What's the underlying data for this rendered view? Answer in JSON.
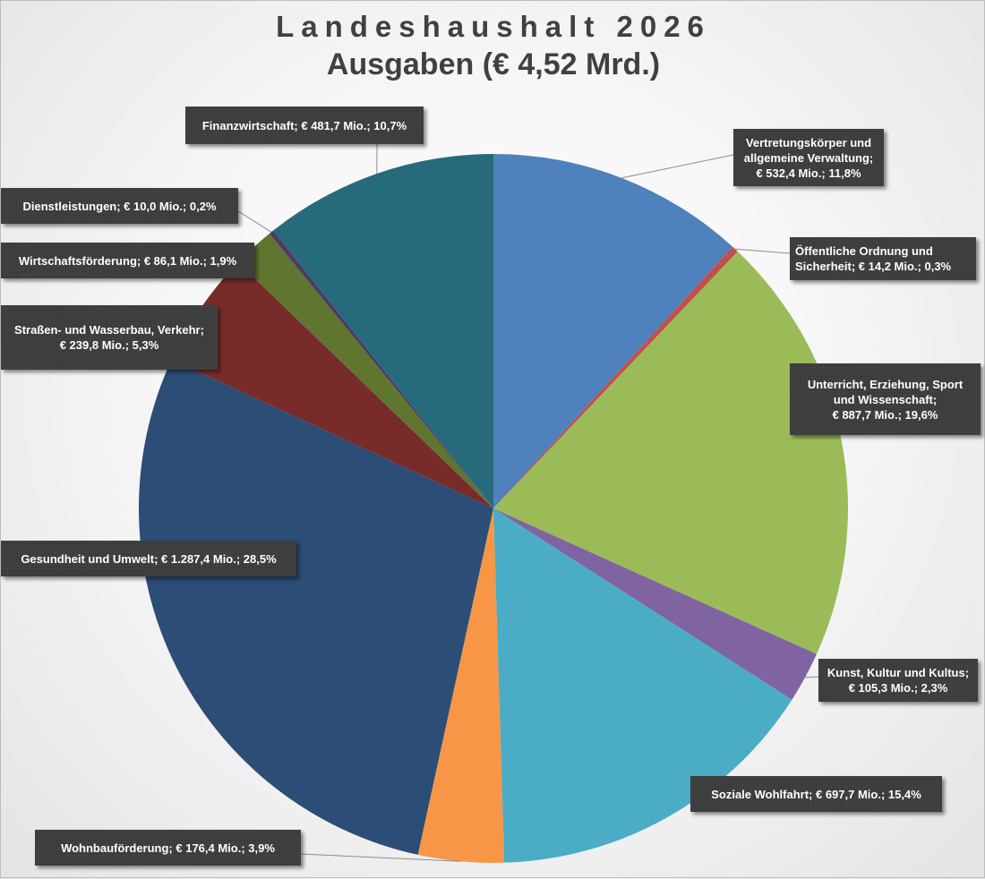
{
  "title_line1": "Landeshaushalt 2026",
  "title_line2": "Ausgaben (€ 4,52 Mrd.)",
  "chart_data": {
    "type": "pie",
    "title": "Landeshaushalt 2026 Ausgaben (€ 4,52 Mrd.)",
    "unit": "€ Mio.",
    "slices": [
      {
        "category": "Vertretungskörper und allgemeine Verwaltung",
        "value": 532.4,
        "percent": 11.8,
        "color": "#4f81bd",
        "label_lines": [
          "Vertretungskörper und",
          "allgemeine Verwaltung;",
          "€ 532,4 Mio.; 11,8%"
        ]
      },
      {
        "category": "Öffentliche Ordnung und Sicherheit",
        "value": 14.2,
        "percent": 0.3,
        "color": "#c0504d",
        "label_lines": [
          "Öffentliche Ordnung und",
          "Sicherheit; € 14,2 Mio.; 0,3%"
        ]
      },
      {
        "category": "Unterricht, Erziehung, Sport und Wissenschaft",
        "value": 887.7,
        "percent": 19.6,
        "color": "#9bbb59",
        "label_lines": [
          "Unterricht, Erziehung, Sport",
          "und Wissenschaft;",
          "€ 887,7 Mio.; 19,6%"
        ]
      },
      {
        "category": "Kunst, Kultur und Kultus",
        "value": 105.3,
        "percent": 2.3,
        "color": "#8064a2",
        "label_lines": [
          "Kunst, Kultur und Kultus;",
          "€ 105,3 Mio.; 2,3%"
        ]
      },
      {
        "category": "Soziale Wohlfahrt",
        "value": 697.7,
        "percent": 15.4,
        "color": "#4bacc6",
        "label_lines": [
          "Soziale Wohlfahrt; € 697,7 Mio.; 15,4%"
        ]
      },
      {
        "category": "Wohnbauförderung",
        "value": 176.4,
        "percent": 3.9,
        "color": "#f79646",
        "label_lines": [
          "Wohnbauförderung; € 176,4 Mio.; 3,9%"
        ]
      },
      {
        "category": "Gesundheit und Umwelt",
        "value": 1287.4,
        "percent": 28.5,
        "color": "#2c4d75",
        "label_lines": [
          "Gesundheit und Umwelt; € 1.287,4 Mio.; 28,5%"
        ]
      },
      {
        "category": "Straßen- und Wasserbau, Verkehr",
        "value": 239.8,
        "percent": 5.3,
        "color": "#772c2a",
        "label_lines": [
          "Straßen- und Wasserbau, Verkehr;",
          "€ 239,8 Mio.; 5,3%"
        ]
      },
      {
        "category": "Wirtschaftsförderung",
        "value": 86.1,
        "percent": 1.9,
        "color": "#5f7530",
        "label_lines": [
          "Wirtschaftsförderung; € 86,1 Mio.; 1,9%"
        ]
      },
      {
        "category": "Dienstleistungen",
        "value": 10.0,
        "percent": 0.2,
        "color": "#4d3b62",
        "label_lines": [
          "Dienstleistungen; € 10,0 Mio.; 0,2%"
        ]
      },
      {
        "category": "Finanzwirtschaft",
        "value": 481.7,
        "percent": 10.7,
        "color": "#276a7c",
        "label_lines": [
          "Finanzwirtschaft; € 481,7 Mio.; 10,7%"
        ]
      }
    ]
  }
}
